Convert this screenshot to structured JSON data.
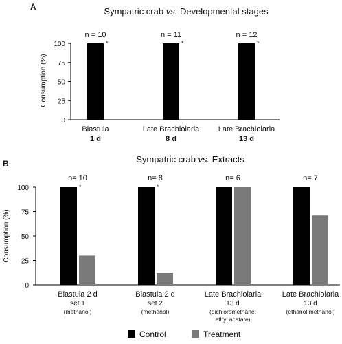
{
  "chart_data": [
    {
      "type": "bar",
      "panel": "A",
      "title_parts": [
        "Sympatric crab ",
        "vs.",
        " Developmental stages"
      ],
      "ylabel": "Consumption (%)",
      "ylim": [
        0,
        100
      ],
      "yticks": [
        0,
        25,
        50,
        75,
        100
      ],
      "categories": [
        {
          "line1": "Blastula",
          "line2": "1 d"
        },
        {
          "line1": "Late Brachiolaria",
          "line2": "8 d"
        },
        {
          "line1": "Late Brachiolaria",
          "line2": "13 d"
        }
      ],
      "n_labels": [
        "n = 10",
        "n = 11",
        "n = 12"
      ],
      "series": [
        {
          "name": "Control",
          "color": "#000000",
          "values": [
            100,
            100,
            100
          ]
        }
      ],
      "significance": [
        "*",
        "*",
        "*"
      ]
    },
    {
      "type": "bar",
      "panel": "B",
      "title_parts": [
        "Sympatric crab ",
        "vs.",
        " Extracts"
      ],
      "ylabel": "Consumption (%)",
      "ylim": [
        0,
        100
      ],
      "yticks": [
        0,
        25,
        50,
        75,
        100
      ],
      "categories": [
        {
          "line1": "Blastula 2 d",
          "line2": "set 1",
          "line3": "(methanol)",
          "line4": ""
        },
        {
          "line1": "Blastula 2 d",
          "line2": "set 2",
          "line3": "(methanol)",
          "line4": ""
        },
        {
          "line1": "Late Brachiolaria",
          "line2": "13 d",
          "line3": "(dichloromethane:",
          "line4": "ethyl acetate)"
        },
        {
          "line1": "Late Brachiolaria",
          "line2": "13 d",
          "line3": "(ethanol:methanol)",
          "line4": ""
        }
      ],
      "n_labels": [
        "n= 10",
        "n= 8",
        "n= 6",
        "n= 7"
      ],
      "series": [
        {
          "name": "Control",
          "color": "#000000",
          "values": [
            100,
            100,
            100,
            100
          ]
        },
        {
          "name": "Treatment",
          "color": "#7a7a7a",
          "values": [
            30,
            12,
            100,
            71
          ]
        }
      ],
      "significance": [
        "*",
        "*",
        "",
        ""
      ]
    }
  ],
  "legend": {
    "placement": "bottom",
    "items": [
      {
        "label": "Control",
        "color": "#000000"
      },
      {
        "label": "Treatment",
        "color": "#7a7a7a"
      }
    ]
  }
}
